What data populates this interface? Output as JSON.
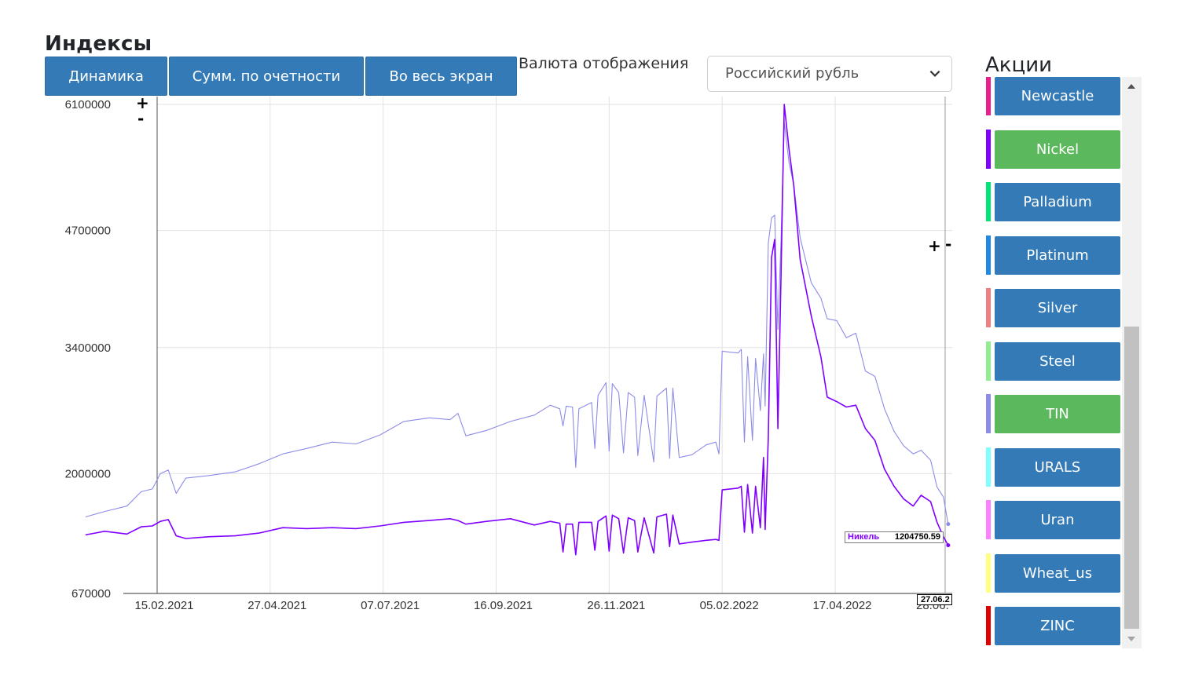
{
  "page": {
    "title": "Индексы"
  },
  "toolbar": {
    "dynamics_label": "Динамика",
    "sum_by_queue_label": "Сумм. по очетности",
    "fullscreen_label": "Во весь экран"
  },
  "currency": {
    "label": "Валюта отображения",
    "selected": "Российский рубль"
  },
  "zoom": {
    "plus": "+",
    "minus": "-"
  },
  "tooltip": {
    "series": "Никель",
    "value": "1204750.59",
    "date": "27.06.2"
  },
  "stocks": {
    "title": "Акции",
    "items": [
      {
        "label": "Newcastle",
        "color": "#e91e8c",
        "active": false
      },
      {
        "label": "Nickel",
        "color": "#8000ff",
        "active": true
      },
      {
        "label": "Palladium",
        "color": "#00e676",
        "active": false
      },
      {
        "label": "Platinum",
        "color": "#1e88e5",
        "active": false
      },
      {
        "label": "Silver",
        "color": "#f08080",
        "active": false
      },
      {
        "label": "Steel",
        "color": "#90ee90",
        "active": false
      },
      {
        "label": "TIN",
        "color": "#8c8ce8",
        "active": true
      },
      {
        "label": "URALS",
        "color": "#80ffff",
        "active": false
      },
      {
        "label": "Uran",
        "color": "#ff80ff",
        "active": false
      },
      {
        "label": "Wheat_us",
        "color": "#ffff80",
        "active": false
      },
      {
        "label": "ZINC",
        "color": "#e00000",
        "active": false
      }
    ],
    "button_color": "#337ab7",
    "active_color": "#5cb85c"
  },
  "chart_data": {
    "type": "line",
    "x_type": "date",
    "x_ticks": [
      "15.02.2021",
      "27.04.2021",
      "07.07.2021",
      "16.09.2021",
      "26.11.2021",
      "05.02.2022",
      "17.04.2022"
    ],
    "x_trailing_tick": "28.06.",
    "y_ticks": [
      6100000,
      4700000,
      3400000,
      2000000,
      670000
    ],
    "ylim": [
      670000,
      6100000
    ],
    "grid": true,
    "series": [
      {
        "name": "TIN",
        "color": "#8c8ce8",
        "points": [
          [
            "2021-01-01",
            1520000
          ],
          [
            "2021-01-13",
            1580000
          ],
          [
            "2021-01-27",
            1640000
          ],
          [
            "2021-02-05",
            1800000
          ],
          [
            "2021-02-12",
            1830000
          ],
          [
            "2021-02-17",
            2000000
          ],
          [
            "2021-02-22",
            2040000
          ],
          [
            "2021-02-27",
            1780000
          ],
          [
            "2021-03-05",
            1950000
          ],
          [
            "2021-03-20",
            1980000
          ],
          [
            "2021-04-05",
            2020000
          ],
          [
            "2021-04-20",
            2110000
          ],
          [
            "2021-05-05",
            2220000
          ],
          [
            "2021-05-20",
            2280000
          ],
          [
            "2021-06-05",
            2350000
          ],
          [
            "2021-06-20",
            2330000
          ],
          [
            "2021-07-05",
            2430000
          ],
          [
            "2021-07-20",
            2580000
          ],
          [
            "2021-08-05",
            2620000
          ],
          [
            "2021-08-18",
            2600000
          ],
          [
            "2021-08-23",
            2670000
          ],
          [
            "2021-08-28",
            2420000
          ],
          [
            "2021-09-10",
            2480000
          ],
          [
            "2021-09-25",
            2580000
          ],
          [
            "2021-10-10",
            2650000
          ],
          [
            "2021-10-20",
            2760000
          ],
          [
            "2021-10-26",
            2720000
          ],
          [
            "2021-10-28",
            2530000
          ],
          [
            "2021-10-30",
            2750000
          ],
          [
            "2021-11-03",
            2740000
          ],
          [
            "2021-11-05",
            2070000
          ],
          [
            "2021-11-07",
            2720000
          ],
          [
            "2021-11-15",
            2790000
          ],
          [
            "2021-11-17",
            2280000
          ],
          [
            "2021-11-19",
            2870000
          ],
          [
            "2021-11-24",
            3010000
          ],
          [
            "2021-11-26",
            2250000
          ],
          [
            "2021-11-28",
            3000000
          ],
          [
            "2021-12-02",
            2900000
          ],
          [
            "2021-12-05",
            2230000
          ],
          [
            "2021-12-08",
            2900000
          ],
          [
            "2021-12-12",
            2850000
          ],
          [
            "2021-12-14",
            2200000
          ],
          [
            "2021-12-18",
            2870000
          ],
          [
            "2021-12-24",
            2130000
          ],
          [
            "2021-12-26",
            2860000
          ],
          [
            "2022-01-01",
            2950000
          ],
          [
            "2022-01-03",
            2170000
          ],
          [
            "2022-01-05",
            2950000
          ],
          [
            "2022-01-09",
            2180000
          ],
          [
            "2022-01-17",
            2210000
          ],
          [
            "2022-01-26",
            2320000
          ],
          [
            "2022-02-01",
            2350000
          ],
          [
            "2022-02-03",
            2220000
          ],
          [
            "2022-02-05",
            3360000
          ],
          [
            "2022-02-15",
            3340000
          ],
          [
            "2022-02-17",
            3380000
          ],
          [
            "2022-02-19",
            2350000
          ],
          [
            "2022-02-21",
            3300000
          ],
          [
            "2022-02-24",
            2370000
          ],
          [
            "2022-02-26",
            3280000
          ],
          [
            "2022-03-01",
            2700000
          ],
          [
            "2022-03-03",
            3330000
          ],
          [
            "2022-03-04",
            2750000
          ],
          [
            "2022-03-06",
            4560000
          ],
          [
            "2022-03-08",
            4840000
          ],
          [
            "2022-03-10",
            4870000
          ],
          [
            "2022-03-12",
            3600000
          ],
          [
            "2022-03-14",
            4600000
          ],
          [
            "2022-03-16",
            5900000
          ],
          [
            "2022-03-19",
            5450000
          ],
          [
            "2022-03-22",
            5210000
          ],
          [
            "2022-03-26",
            4620000
          ],
          [
            "2022-04-02",
            4120000
          ],
          [
            "2022-04-08",
            3950000
          ],
          [
            "2022-04-12",
            3720000
          ],
          [
            "2022-04-18",
            3700000
          ],
          [
            "2022-04-24",
            3510000
          ],
          [
            "2022-04-30",
            3560000
          ],
          [
            "2022-05-06",
            3140000
          ],
          [
            "2022-05-12",
            3080000
          ],
          [
            "2022-05-18",
            2720000
          ],
          [
            "2022-05-24",
            2470000
          ],
          [
            "2022-05-30",
            2310000
          ],
          [
            "2022-06-05",
            2220000
          ],
          [
            "2022-06-10",
            2260000
          ],
          [
            "2022-06-16",
            2150000
          ],
          [
            "2022-06-20",
            1850000
          ],
          [
            "2022-06-24",
            1740000
          ],
          [
            "2022-06-27",
            1440000
          ]
        ]
      },
      {
        "name": "Никель",
        "color": "#8000ff",
        "points": [
          [
            "2021-01-01",
            1320000
          ],
          [
            "2021-01-13",
            1360000
          ],
          [
            "2021-01-27",
            1330000
          ],
          [
            "2021-02-05",
            1410000
          ],
          [
            "2021-02-12",
            1420000
          ],
          [
            "2021-02-17",
            1470000
          ],
          [
            "2021-02-22",
            1490000
          ],
          [
            "2021-02-27",
            1310000
          ],
          [
            "2021-03-05",
            1280000
          ],
          [
            "2021-03-20",
            1300000
          ],
          [
            "2021-04-05",
            1310000
          ],
          [
            "2021-04-20",
            1340000
          ],
          [
            "2021-05-05",
            1400000
          ],
          [
            "2021-05-20",
            1390000
          ],
          [
            "2021-06-05",
            1400000
          ],
          [
            "2021-06-20",
            1390000
          ],
          [
            "2021-07-05",
            1420000
          ],
          [
            "2021-07-20",
            1460000
          ],
          [
            "2021-08-05",
            1480000
          ],
          [
            "2021-08-18",
            1500000
          ],
          [
            "2021-08-23",
            1480000
          ],
          [
            "2021-08-28",
            1440000
          ],
          [
            "2021-09-10",
            1470000
          ],
          [
            "2021-09-25",
            1500000
          ],
          [
            "2021-10-10",
            1430000
          ],
          [
            "2021-10-20",
            1470000
          ],
          [
            "2021-10-26",
            1450000
          ],
          [
            "2021-10-28",
            1130000
          ],
          [
            "2021-10-30",
            1440000
          ],
          [
            "2021-11-03",
            1440000
          ],
          [
            "2021-11-05",
            1100000
          ],
          [
            "2021-11-07",
            1460000
          ],
          [
            "2021-11-15",
            1460000
          ],
          [
            "2021-11-17",
            1150000
          ],
          [
            "2021-11-19",
            1470000
          ],
          [
            "2021-11-24",
            1530000
          ],
          [
            "2021-11-26",
            1140000
          ],
          [
            "2021-11-28",
            1540000
          ],
          [
            "2021-12-02",
            1500000
          ],
          [
            "2021-12-05",
            1120000
          ],
          [
            "2021-12-08",
            1510000
          ],
          [
            "2021-12-12",
            1480000
          ],
          [
            "2021-12-14",
            1130000
          ],
          [
            "2021-12-18",
            1510000
          ],
          [
            "2021-12-24",
            1120000
          ],
          [
            "2021-12-26",
            1520000
          ],
          [
            "2022-01-01",
            1550000
          ],
          [
            "2022-01-03",
            1190000
          ],
          [
            "2022-01-05",
            1540000
          ],
          [
            "2022-01-09",
            1220000
          ],
          [
            "2022-01-17",
            1240000
          ],
          [
            "2022-01-26",
            1260000
          ],
          [
            "2022-02-01",
            1270000
          ],
          [
            "2022-02-03",
            1260000
          ],
          [
            "2022-02-05",
            1820000
          ],
          [
            "2022-02-15",
            1840000
          ],
          [
            "2022-02-17",
            1860000
          ],
          [
            "2022-02-19",
            1350000
          ],
          [
            "2022-02-21",
            1880000
          ],
          [
            "2022-02-24",
            1340000
          ],
          [
            "2022-02-26",
            1860000
          ],
          [
            "2022-03-01",
            1400000
          ],
          [
            "2022-03-03",
            2180000
          ],
          [
            "2022-03-04",
            1380000
          ],
          [
            "2022-03-06",
            2400000
          ],
          [
            "2022-03-08",
            4400000
          ],
          [
            "2022-03-10",
            4600000
          ],
          [
            "2022-03-12",
            2500000
          ],
          [
            "2022-03-14",
            4200000
          ],
          [
            "2022-03-16",
            6100000
          ],
          [
            "2022-03-19",
            5600000
          ],
          [
            "2022-03-22",
            5200000
          ],
          [
            "2022-03-26",
            4380000
          ],
          [
            "2022-04-02",
            3750000
          ],
          [
            "2022-04-08",
            3300000
          ],
          [
            "2022-04-12",
            2850000
          ],
          [
            "2022-04-18",
            2800000
          ],
          [
            "2022-04-24",
            2740000
          ],
          [
            "2022-04-30",
            2760000
          ],
          [
            "2022-05-06",
            2500000
          ],
          [
            "2022-05-12",
            2370000
          ],
          [
            "2022-05-18",
            2050000
          ],
          [
            "2022-05-24",
            1860000
          ],
          [
            "2022-05-30",
            1720000
          ],
          [
            "2022-06-05",
            1640000
          ],
          [
            "2022-06-10",
            1760000
          ],
          [
            "2022-06-16",
            1690000
          ],
          [
            "2022-06-20",
            1460000
          ],
          [
            "2022-06-24",
            1300000
          ],
          [
            "2022-06-27",
            1204750.59
          ]
        ]
      }
    ]
  }
}
